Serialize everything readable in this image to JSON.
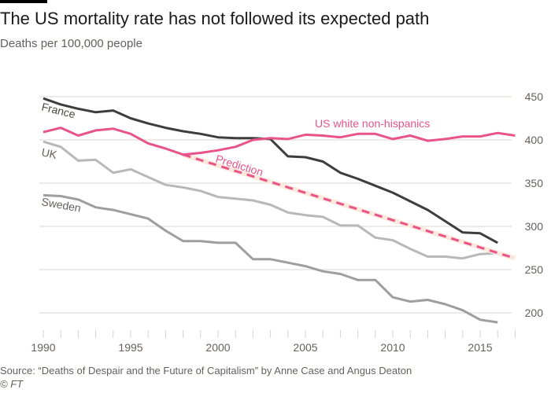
{
  "header": {
    "title": "The US mortality rate has not followed its expected path",
    "subtitle": "Deaths per 100,000 people"
  },
  "footer": {
    "source": "Source: “Deaths of Despair and the Future of Capitalism” by Anne Case and Angus Deaton",
    "credit": "© FT"
  },
  "colors": {
    "us": "#e8548a",
    "france": "#3d3d3d",
    "uk": "#b8b8b8",
    "sweden": "#9e9e9e",
    "grid": "#ebe3de",
    "prediction_bg": "#fde8dc"
  },
  "chart_data": {
    "type": "line",
    "title": "The US mortality rate has not followed its expected path",
    "subtitle": "Deaths per 100,000 people",
    "xlabel": "",
    "ylabel": "Deaths per 100,000 people",
    "xlim": [
      1990,
      2017
    ],
    "ylim": [
      190,
      455
    ],
    "grid": true,
    "x_ticks": [
      1990,
      1995,
      2000,
      2005,
      2010,
      2015
    ],
    "x_tick_labels": [
      "1990",
      "1995",
      "2000",
      "2005",
      "2010",
      "2015"
    ],
    "y_ticks": [
      200,
      250,
      300,
      350,
      400,
      450
    ],
    "y_tick_labels": [
      "200",
      "250",
      "300",
      "350",
      "400",
      "450"
    ],
    "series": [
      {
        "name": "France",
        "label": "France",
        "x": [
          1990,
          1991,
          1992,
          1993,
          1994,
          1995,
          1996,
          1997,
          1998,
          1999,
          2000,
          2001,
          2002,
          2003,
          2004,
          2005,
          2006,
          2007,
          2008,
          2009,
          2010,
          2011,
          2012,
          2013,
          2014,
          2015,
          2016
        ],
        "values": [
          448,
          441,
          436,
          432,
          434,
          425,
          419,
          414,
          410,
          407,
          403,
          402,
          402,
          401,
          381,
          380,
          375,
          362,
          355,
          347,
          339,
          329,
          319,
          306,
          293,
          292,
          281
        ]
      },
      {
        "name": "US white non-hispanics",
        "label": "US white non-hispanics",
        "x": [
          1990,
          1991,
          1992,
          1993,
          1994,
          1995,
          1996,
          1997,
          1998,
          1999,
          2000,
          2001,
          2002,
          2003,
          2004,
          2005,
          2006,
          2007,
          2008,
          2009,
          2010,
          2011,
          2012,
          2013,
          2014,
          2015,
          2016,
          2017
        ],
        "values": [
          409,
          414,
          405,
          411,
          413,
          407,
          396,
          390,
          383,
          385,
          388,
          392,
          400,
          402,
          401,
          406,
          405,
          403,
          407,
          407,
          401,
          405,
          399,
          401,
          404,
          404,
          408,
          405
        ]
      },
      {
        "name": "Prediction",
        "label": "Prediction",
        "style": "dashed",
        "x": [
          1998,
          2017
        ],
        "values": [
          383,
          263
        ]
      },
      {
        "name": "UK",
        "label": "UK",
        "x": [
          1990,
          1991,
          1992,
          1993,
          1994,
          1995,
          1996,
          1997,
          1998,
          1999,
          2000,
          2001,
          2002,
          2003,
          2004,
          2005,
          2006,
          2007,
          2008,
          2009,
          2010,
          2011,
          2012,
          2013,
          2014,
          2015,
          2016
        ],
        "values": [
          398,
          392,
          376,
          377,
          362,
          366,
          357,
          348,
          345,
          341,
          334,
          332,
          330,
          325,
          316,
          313,
          311,
          301,
          301,
          287,
          284,
          274,
          265,
          265,
          263,
          268,
          269
        ]
      },
      {
        "name": "Sweden",
        "label": "Sweden",
        "x": [
          1990,
          1991,
          1992,
          1993,
          1994,
          1995,
          1996,
          1997,
          1998,
          1999,
          2000,
          2001,
          2002,
          2003,
          2004,
          2005,
          2006,
          2007,
          2008,
          2009,
          2010,
          2011,
          2012,
          2013,
          2014,
          2015,
          2016
        ],
        "values": [
          336,
          335,
          331,
          322,
          319,
          314,
          309,
          295,
          283,
          283,
          281,
          281,
          262,
          262,
          258,
          254,
          248,
          245,
          238,
          238,
          218,
          213,
          215,
          210,
          203,
          192,
          189
        ]
      }
    ]
  }
}
